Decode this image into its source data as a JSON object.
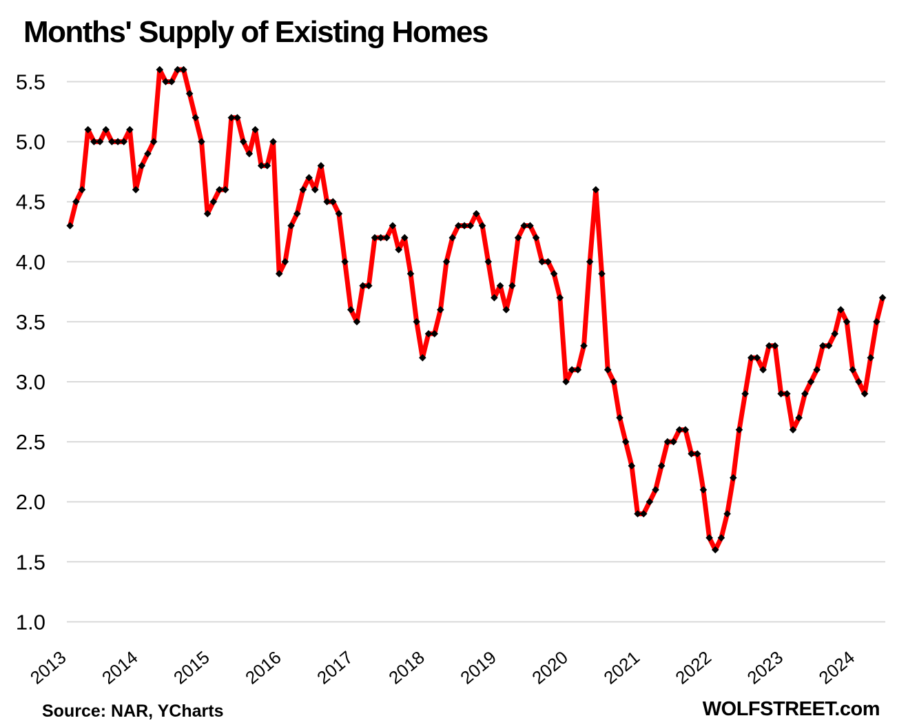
{
  "title": "Months' Supply of Existing Homes",
  "source_note": "Source: NAR, YCharts",
  "branding": "WOLFSTREET.com",
  "colors": {
    "line": "#FF0000",
    "marker": "#000000",
    "gridline": "#D9D9D9",
    "text": "#000000",
    "background": "#FFFFFF"
  },
  "chart_data": {
    "type": "line",
    "title": "Months' Supply of Existing Homes",
    "xlabel": "",
    "ylabel": "",
    "frequency": "monthly",
    "start_month": "2013-01",
    "end_month": "2024-05",
    "ylim": [
      1.0,
      5.5
    ],
    "y_tick_labels": [
      "5.5",
      "5.0",
      "4.5",
      "4.0",
      "3.5",
      "3.0",
      "2.5",
      "2.0",
      "1.5",
      "1.0"
    ],
    "x_tick_labels": [
      "2013",
      "2014",
      "2015",
      "2016",
      "2017",
      "2018",
      "2019",
      "2020",
      "2021",
      "2022",
      "2023",
      "2024"
    ],
    "grid": "horizontal gridlines only, no axis lines",
    "legend": "none",
    "marker_style": "black diamond at every monthly data point on thick red line",
    "series": [
      {
        "year": 2013,
        "monthly": [
          4.3,
          4.5,
          4.6,
          5.1,
          5.0,
          5.0,
          5.1,
          5.0,
          5.0,
          5.0,
          5.1,
          4.6
        ]
      },
      {
        "year": 2014,
        "monthly": [
          4.8,
          4.9,
          5.0,
          5.6,
          5.5,
          5.5,
          5.6,
          5.6,
          5.4,
          5.2,
          5.0,
          4.4
        ]
      },
      {
        "year": 2015,
        "monthly": [
          4.5,
          4.6,
          4.6,
          5.2,
          5.2,
          5.0,
          4.9,
          5.1,
          4.8,
          4.8,
          5.0,
          3.9
        ]
      },
      {
        "year": 2016,
        "monthly": [
          4.0,
          4.3,
          4.4,
          4.6,
          4.7,
          4.6,
          4.8,
          4.5,
          4.5,
          4.4,
          4.0,
          3.6
        ]
      },
      {
        "year": 2017,
        "monthly": [
          3.5,
          3.8,
          3.8,
          4.2,
          4.2,
          4.2,
          4.3,
          4.1,
          4.2,
          3.9,
          3.5,
          3.2
        ]
      },
      {
        "year": 2018,
        "monthly": [
          3.4,
          3.4,
          3.6,
          4.0,
          4.2,
          4.3,
          4.3,
          4.3,
          4.4,
          4.3,
          4.0,
          3.7
        ]
      },
      {
        "year": 2019,
        "monthly": [
          3.8,
          3.6,
          3.8,
          4.2,
          4.3,
          4.3,
          4.2,
          4.0,
          4.0,
          3.9,
          3.7,
          3.0
        ]
      },
      {
        "year": 2020,
        "monthly": [
          3.1,
          3.1,
          3.3,
          4.0,
          4.6,
          3.9,
          3.1,
          3.0,
          2.7,
          2.5,
          2.3,
          1.9
        ]
      },
      {
        "year": 2021,
        "monthly": [
          1.9,
          2.0,
          2.1,
          2.3,
          2.5,
          2.5,
          2.6,
          2.6,
          2.4,
          2.4,
          2.1,
          1.7
        ]
      },
      {
        "year": 2022,
        "monthly": [
          1.6,
          1.7,
          1.9,
          2.2,
          2.6,
          2.9,
          3.2,
          3.2,
          3.1,
          3.3,
          3.3,
          2.9
        ]
      },
      {
        "year": 2023,
        "monthly": [
          2.9,
          2.6,
          2.7,
          2.9,
          3.0,
          3.1,
          3.3,
          3.3,
          3.4,
          3.6,
          3.5,
          3.1
        ]
      },
      {
        "year": 2024,
        "monthly": [
          3.0,
          2.9,
          3.2,
          3.5,
          3.7
        ]
      }
    ]
  }
}
